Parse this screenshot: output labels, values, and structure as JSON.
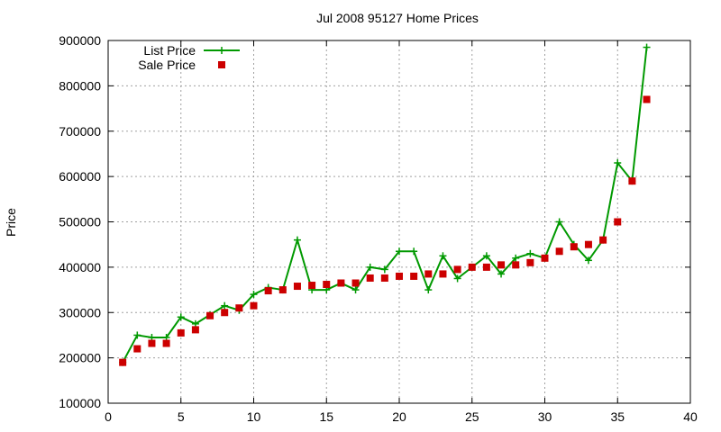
{
  "chart_data": {
    "type": "line",
    "title": "Jul 2008 95127 Home Prices",
    "xlabel": "",
    "ylabel": "Price",
    "xlim": [
      0,
      40
    ],
    "ylim": [
      100000,
      900000
    ],
    "xticks": [
      0,
      5,
      10,
      15,
      20,
      25,
      30,
      35,
      40
    ],
    "yticks": [
      100000,
      200000,
      300000,
      400000,
      500000,
      600000,
      700000,
      800000,
      900000
    ],
    "grid": true,
    "legend_position": "top-left",
    "series": [
      {
        "name": "List Price",
        "style": "line-points",
        "color": "#009900",
        "x": [
          1,
          2,
          3,
          4,
          5,
          6,
          7,
          8,
          9,
          10,
          11,
          12,
          13,
          14,
          15,
          16,
          17,
          18,
          19,
          20,
          21,
          22,
          23,
          24,
          25,
          26,
          27,
          28,
          29,
          30,
          31,
          32,
          33,
          34,
          35,
          36,
          37
        ],
        "y": [
          190000,
          250000,
          245000,
          245000,
          290000,
          275000,
          295000,
          315000,
          305000,
          340000,
          355000,
          350000,
          460000,
          350000,
          350000,
          365000,
          350000,
          400000,
          395000,
          435000,
          435000,
          350000,
          425000,
          375000,
          400000,
          425000,
          385000,
          420000,
          430000,
          420000,
          500000,
          450000,
          415000,
          460000,
          630000,
          590000,
          885000
        ]
      },
      {
        "name": "Sale Price",
        "style": "points",
        "color": "#cc0000",
        "x": [
          1,
          2,
          3,
          4,
          5,
          6,
          7,
          8,
          9,
          10,
          11,
          12,
          13,
          14,
          15,
          16,
          17,
          18,
          19,
          20,
          21,
          22,
          23,
          24,
          25,
          26,
          27,
          28,
          29,
          30,
          31,
          32,
          33,
          34,
          35,
          36,
          37
        ],
        "y": [
          190000,
          220000,
          232000,
          232000,
          255000,
          262000,
          293000,
          300000,
          310000,
          315000,
          348000,
          350000,
          358000,
          360000,
          362000,
          365000,
          365000,
          376000,
          376000,
          380000,
          380000,
          385000,
          385000,
          395000,
          400000,
          400000,
          405000,
          405000,
          410000,
          420000,
          435000,
          445000,
          450000,
          460000,
          500000,
          590000,
          770000
        ]
      }
    ]
  }
}
